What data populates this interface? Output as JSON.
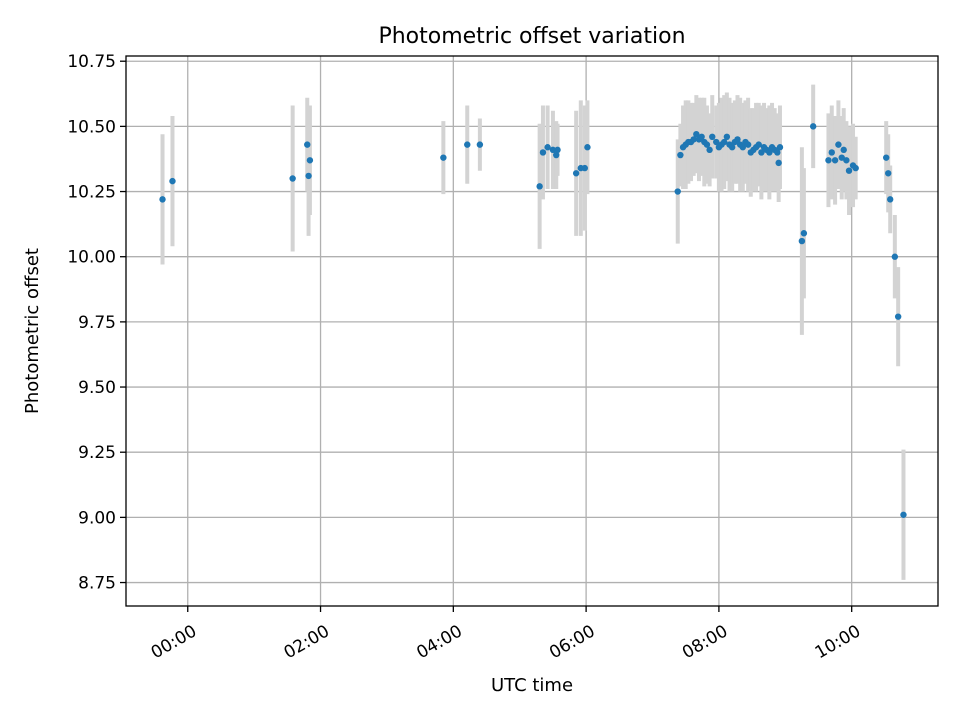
{
  "chart_data": {
    "type": "scatter",
    "title": "Photometric offset variation",
    "xlabel": "UTC time",
    "ylabel": "Photometric offset",
    "xlim": [
      -0.93,
      11.3
    ],
    "ylim": [
      8.66,
      10.77
    ],
    "grid": true,
    "colors": {
      "point": "#1f77b4",
      "errorbar": "#d3d3d3"
    },
    "x_ticks": [
      {
        "value": 0,
        "label": "00:00"
      },
      {
        "value": 2,
        "label": "02:00"
      },
      {
        "value": 4,
        "label": "04:00"
      },
      {
        "value": 6,
        "label": "06:00"
      },
      {
        "value": 8,
        "label": "08:00"
      },
      {
        "value": 10,
        "label": "10:00"
      }
    ],
    "y_ticks": [
      {
        "value": 8.75,
        "label": "8.75"
      },
      {
        "value": 9.0,
        "label": "9.00"
      },
      {
        "value": 9.25,
        "label": "9.25"
      },
      {
        "value": 9.5,
        "label": "9.50"
      },
      {
        "value": 9.75,
        "label": "9.75"
      },
      {
        "value": 10.0,
        "label": "10.00"
      },
      {
        "value": 10.25,
        "label": "10.25"
      },
      {
        "value": 10.5,
        "label": "10.50"
      },
      {
        "value": 10.75,
        "label": "10.75"
      }
    ],
    "points": [
      [
        -0.38,
        10.22,
        0.25
      ],
      [
        -0.23,
        10.29,
        0.25
      ],
      [
        1.58,
        10.3,
        0.28
      ],
      [
        1.8,
        10.43,
        0.18
      ],
      [
        1.82,
        10.31,
        0.23
      ],
      [
        1.84,
        10.37,
        0.21
      ],
      [
        3.85,
        10.38,
        0.14
      ],
      [
        4.21,
        10.43,
        0.15
      ],
      [
        4.4,
        10.43,
        0.1
      ],
      [
        5.3,
        10.27,
        0.24
      ],
      [
        5.35,
        10.4,
        0.18
      ],
      [
        5.42,
        10.42,
        0.16
      ],
      [
        5.5,
        10.41,
        0.15
      ],
      [
        5.55,
        10.39,
        0.13
      ],
      [
        5.57,
        10.41,
        0.1
      ],
      [
        5.85,
        10.32,
        0.24
      ],
      [
        5.92,
        10.34,
        0.26
      ],
      [
        5.98,
        10.34,
        0.24
      ],
      [
        6.02,
        10.42,
        0.18
      ],
      [
        7.38,
        10.25,
        0.2
      ],
      [
        7.42,
        10.39,
        0.12
      ],
      [
        7.46,
        10.42,
        0.16
      ],
      [
        7.5,
        10.43,
        0.17
      ],
      [
        7.54,
        10.44,
        0.16
      ],
      [
        7.58,
        10.44,
        0.15
      ],
      [
        7.62,
        10.45,
        0.14
      ],
      [
        7.66,
        10.47,
        0.15
      ],
      [
        7.7,
        10.45,
        0.16
      ],
      [
        7.74,
        10.46,
        0.15
      ],
      [
        7.78,
        10.44,
        0.17
      ],
      [
        7.82,
        10.43,
        0.15
      ],
      [
        7.86,
        10.41,
        0.14
      ],
      [
        7.9,
        10.46,
        0.16
      ],
      [
        7.96,
        10.44,
        0.14
      ],
      [
        8.0,
        10.42,
        0.17
      ],
      [
        8.04,
        10.43,
        0.18
      ],
      [
        8.08,
        10.44,
        0.18
      ],
      [
        8.12,
        10.46,
        0.17
      ],
      [
        8.16,
        10.43,
        0.18
      ],
      [
        8.2,
        10.42,
        0.17
      ],
      [
        8.24,
        10.44,
        0.16
      ],
      [
        8.28,
        10.45,
        0.17
      ],
      [
        8.32,
        10.43,
        0.18
      ],
      [
        8.36,
        10.42,
        0.17
      ],
      [
        8.4,
        10.44,
        0.16
      ],
      [
        8.44,
        10.43,
        0.18
      ],
      [
        8.48,
        10.4,
        0.17
      ],
      [
        8.52,
        10.41,
        0.16
      ],
      [
        8.56,
        10.42,
        0.17
      ],
      [
        8.6,
        10.43,
        0.16
      ],
      [
        8.64,
        10.4,
        0.18
      ],
      [
        8.68,
        10.42,
        0.17
      ],
      [
        8.72,
        10.41,
        0.16
      ],
      [
        8.76,
        10.4,
        0.18
      ],
      [
        8.8,
        10.42,
        0.17
      ],
      [
        8.84,
        10.41,
        0.16
      ],
      [
        8.88,
        10.4,
        0.15
      ],
      [
        8.9,
        10.36,
        0.15
      ],
      [
        8.92,
        10.42,
        0.16
      ],
      [
        9.25,
        10.06,
        0.36
      ],
      [
        9.28,
        10.09,
        0.25
      ],
      [
        9.42,
        10.5,
        0.16
      ],
      [
        9.65,
        10.37,
        0.18
      ],
      [
        9.7,
        10.4,
        0.18
      ],
      [
        9.75,
        10.37,
        0.17
      ],
      [
        9.8,
        10.43,
        0.17
      ],
      [
        9.85,
        10.38,
        0.16
      ],
      [
        9.88,
        10.41,
        0.16
      ],
      [
        9.92,
        10.37,
        0.15
      ],
      [
        9.96,
        10.33,
        0.17
      ],
      [
        10.02,
        10.35,
        0.16
      ],
      [
        10.06,
        10.34,
        0.12
      ],
      [
        10.52,
        10.38,
        0.14
      ],
      [
        10.55,
        10.32,
        0.15
      ],
      [
        10.58,
        10.22,
        0.13
      ],
      [
        10.65,
        10.0,
        0.16
      ],
      [
        10.7,
        9.77,
        0.19
      ],
      [
        10.78,
        9.01,
        0.25
      ]
    ]
  }
}
